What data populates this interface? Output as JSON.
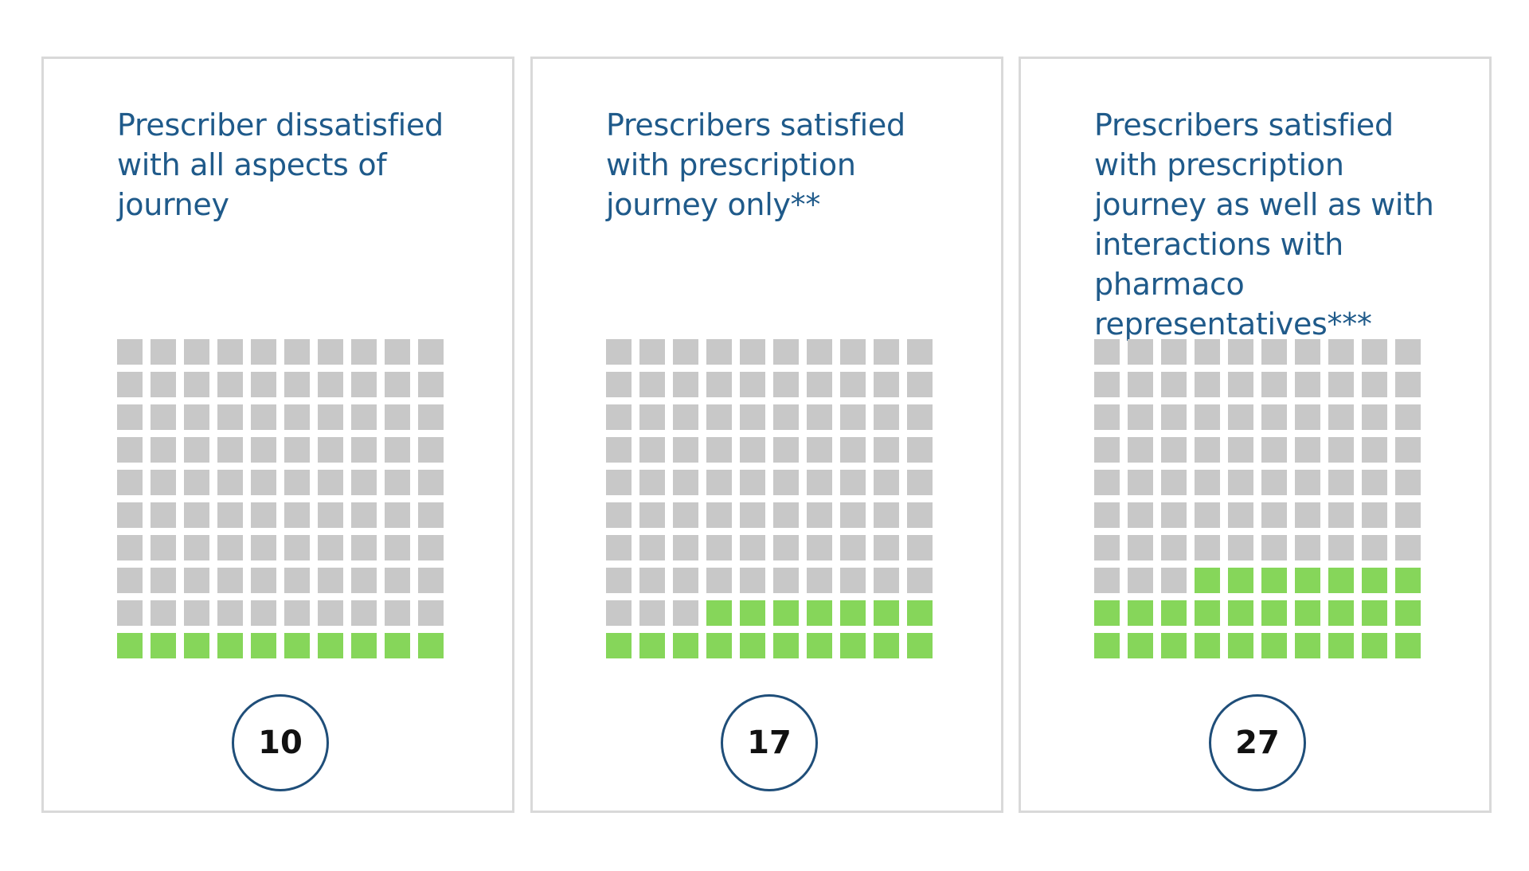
{
  "colors": {
    "title": "#1f5a8a",
    "filled": "#86d65a",
    "empty": "#c8c8c8",
    "badge_border": "#1f4e79",
    "panel_border": "#d9d9d9"
  },
  "chart_data": [
    {
      "type": "waffle",
      "title": "Prescriber dissatisfied with all aspects of journey",
      "total": 100,
      "value": 10,
      "value_label": "10"
    },
    {
      "type": "waffle",
      "title": "Prescribers satisfied with prescription journey only**",
      "total": 100,
      "value": 17,
      "value_label": "17"
    },
    {
      "type": "waffle",
      "title": "Prescribers satisfied with prescription journey as well as with interactions with pharmaco representatives***",
      "total": 100,
      "value": 27,
      "value_label": "27"
    }
  ]
}
